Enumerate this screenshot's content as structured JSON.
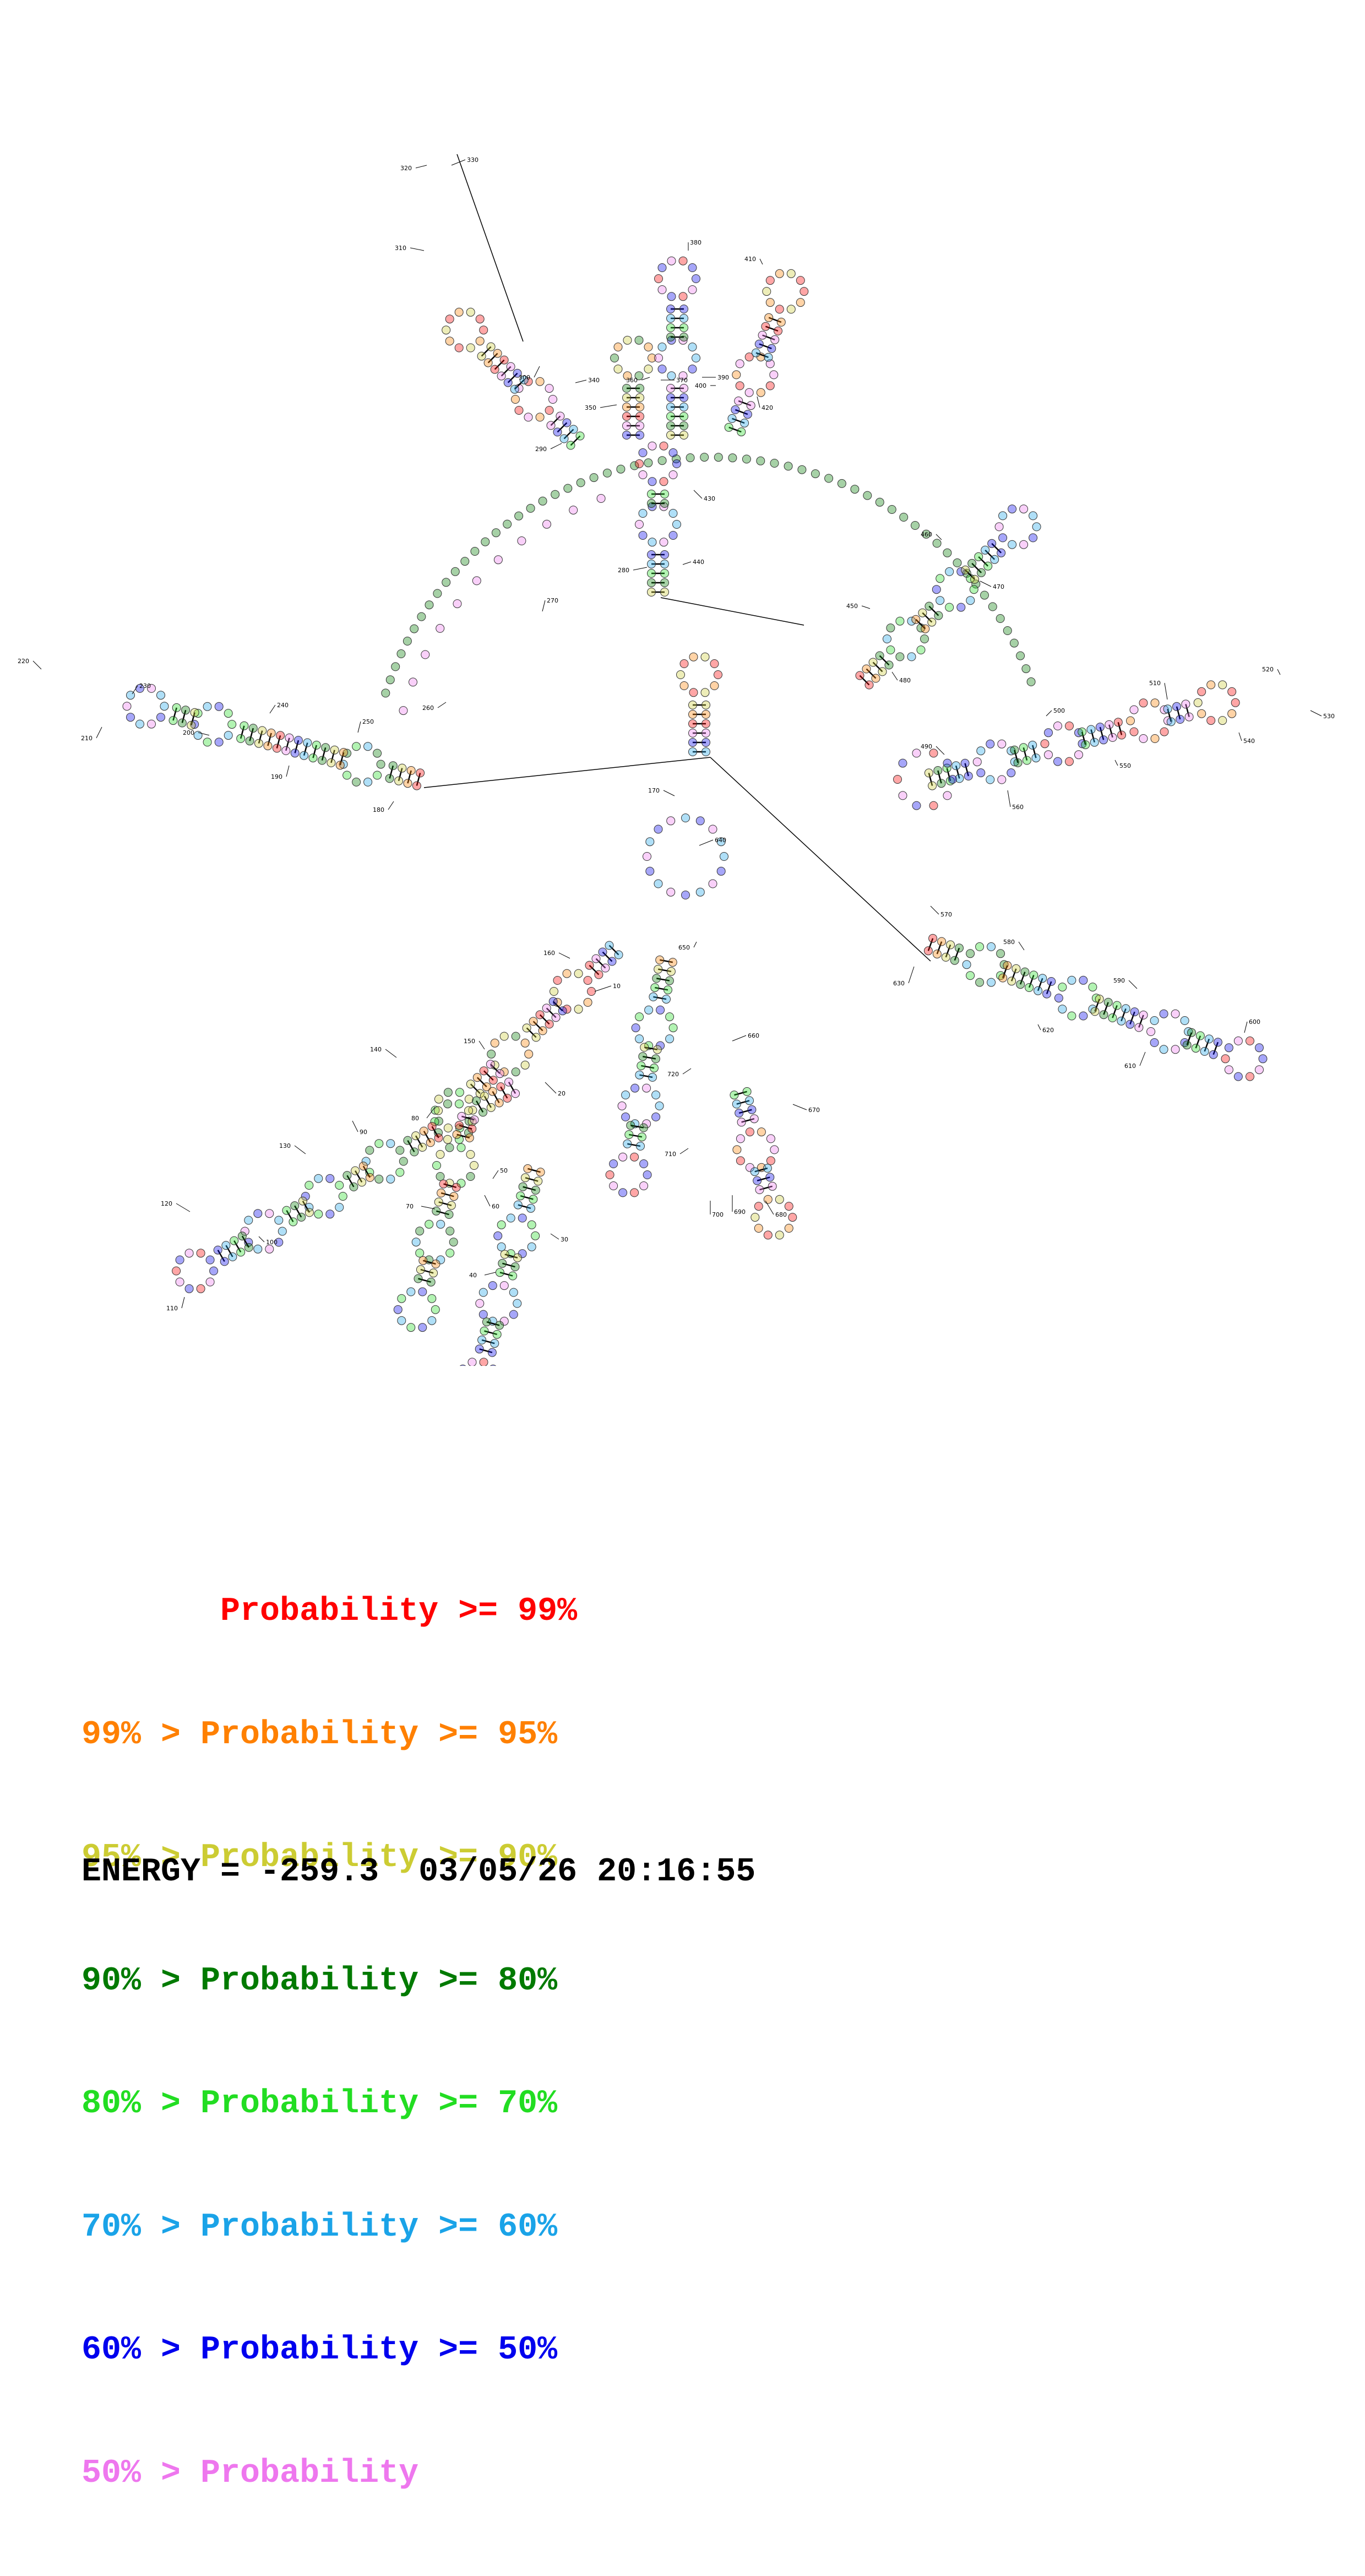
{
  "diagram": {
    "type": "RNA secondary structure (probability colored)",
    "nucleotide_numbers": [
      "10",
      "20",
      "30",
      "40",
      "50",
      "60",
      "70",
      "80",
      "90",
      "100",
      "110",
      "120",
      "130",
      "140",
      "150",
      "160",
      "170",
      "180",
      "190",
      "200",
      "210",
      "220",
      "230",
      "240",
      "250",
      "260",
      "270",
      "280",
      "290",
      "300",
      "310",
      "320",
      "330",
      "340",
      "350",
      "360",
      "370",
      "380",
      "390",
      "400",
      "410",
      "420",
      "430",
      "440",
      "450",
      "460",
      "470",
      "480",
      "490",
      "500",
      "510",
      "520",
      "530",
      "540",
      "550",
      "560",
      "570",
      "580",
      "590",
      "600",
      "610",
      "620",
      "630",
      "640",
      "650",
      "660",
      "670",
      "680",
      "690",
      "700",
      "710",
      "720"
    ],
    "colors": {
      "p99": "#ff0000",
      "p95": "#ff8000",
      "p90": "#cccc33",
      "p80": "#007a00",
      "p70": "#22dd22",
      "p60": "#1aa3e8",
      "p50": "#0000ee",
      "p0": "#ee77ee",
      "line": "#000000"
    }
  },
  "legend": [
    {
      "text": "       Probability >= 99%",
      "color": "#ff0000"
    },
    {
      "text": "99% > Probability >= 95%",
      "color": "#ff8000"
    },
    {
      "text": "95% > Probability >= 90%",
      "color": "#cccc33"
    },
    {
      "text": "90% > Probability >= 80%",
      "color": "#007a00"
    },
    {
      "text": "80% > Probability >= 70%",
      "color": "#22dd22"
    },
    {
      "text": "70% > Probability >= 60%",
      "color": "#1aa3e8"
    },
    {
      "text": "60% > Probability >= 50%",
      "color": "#0000ee"
    },
    {
      "text": "50% > Probability",
      "color": "#ee77ee"
    }
  ],
  "footer": {
    "energy": "ENERGY = -259.3  03/05/26 20:16:55"
  }
}
